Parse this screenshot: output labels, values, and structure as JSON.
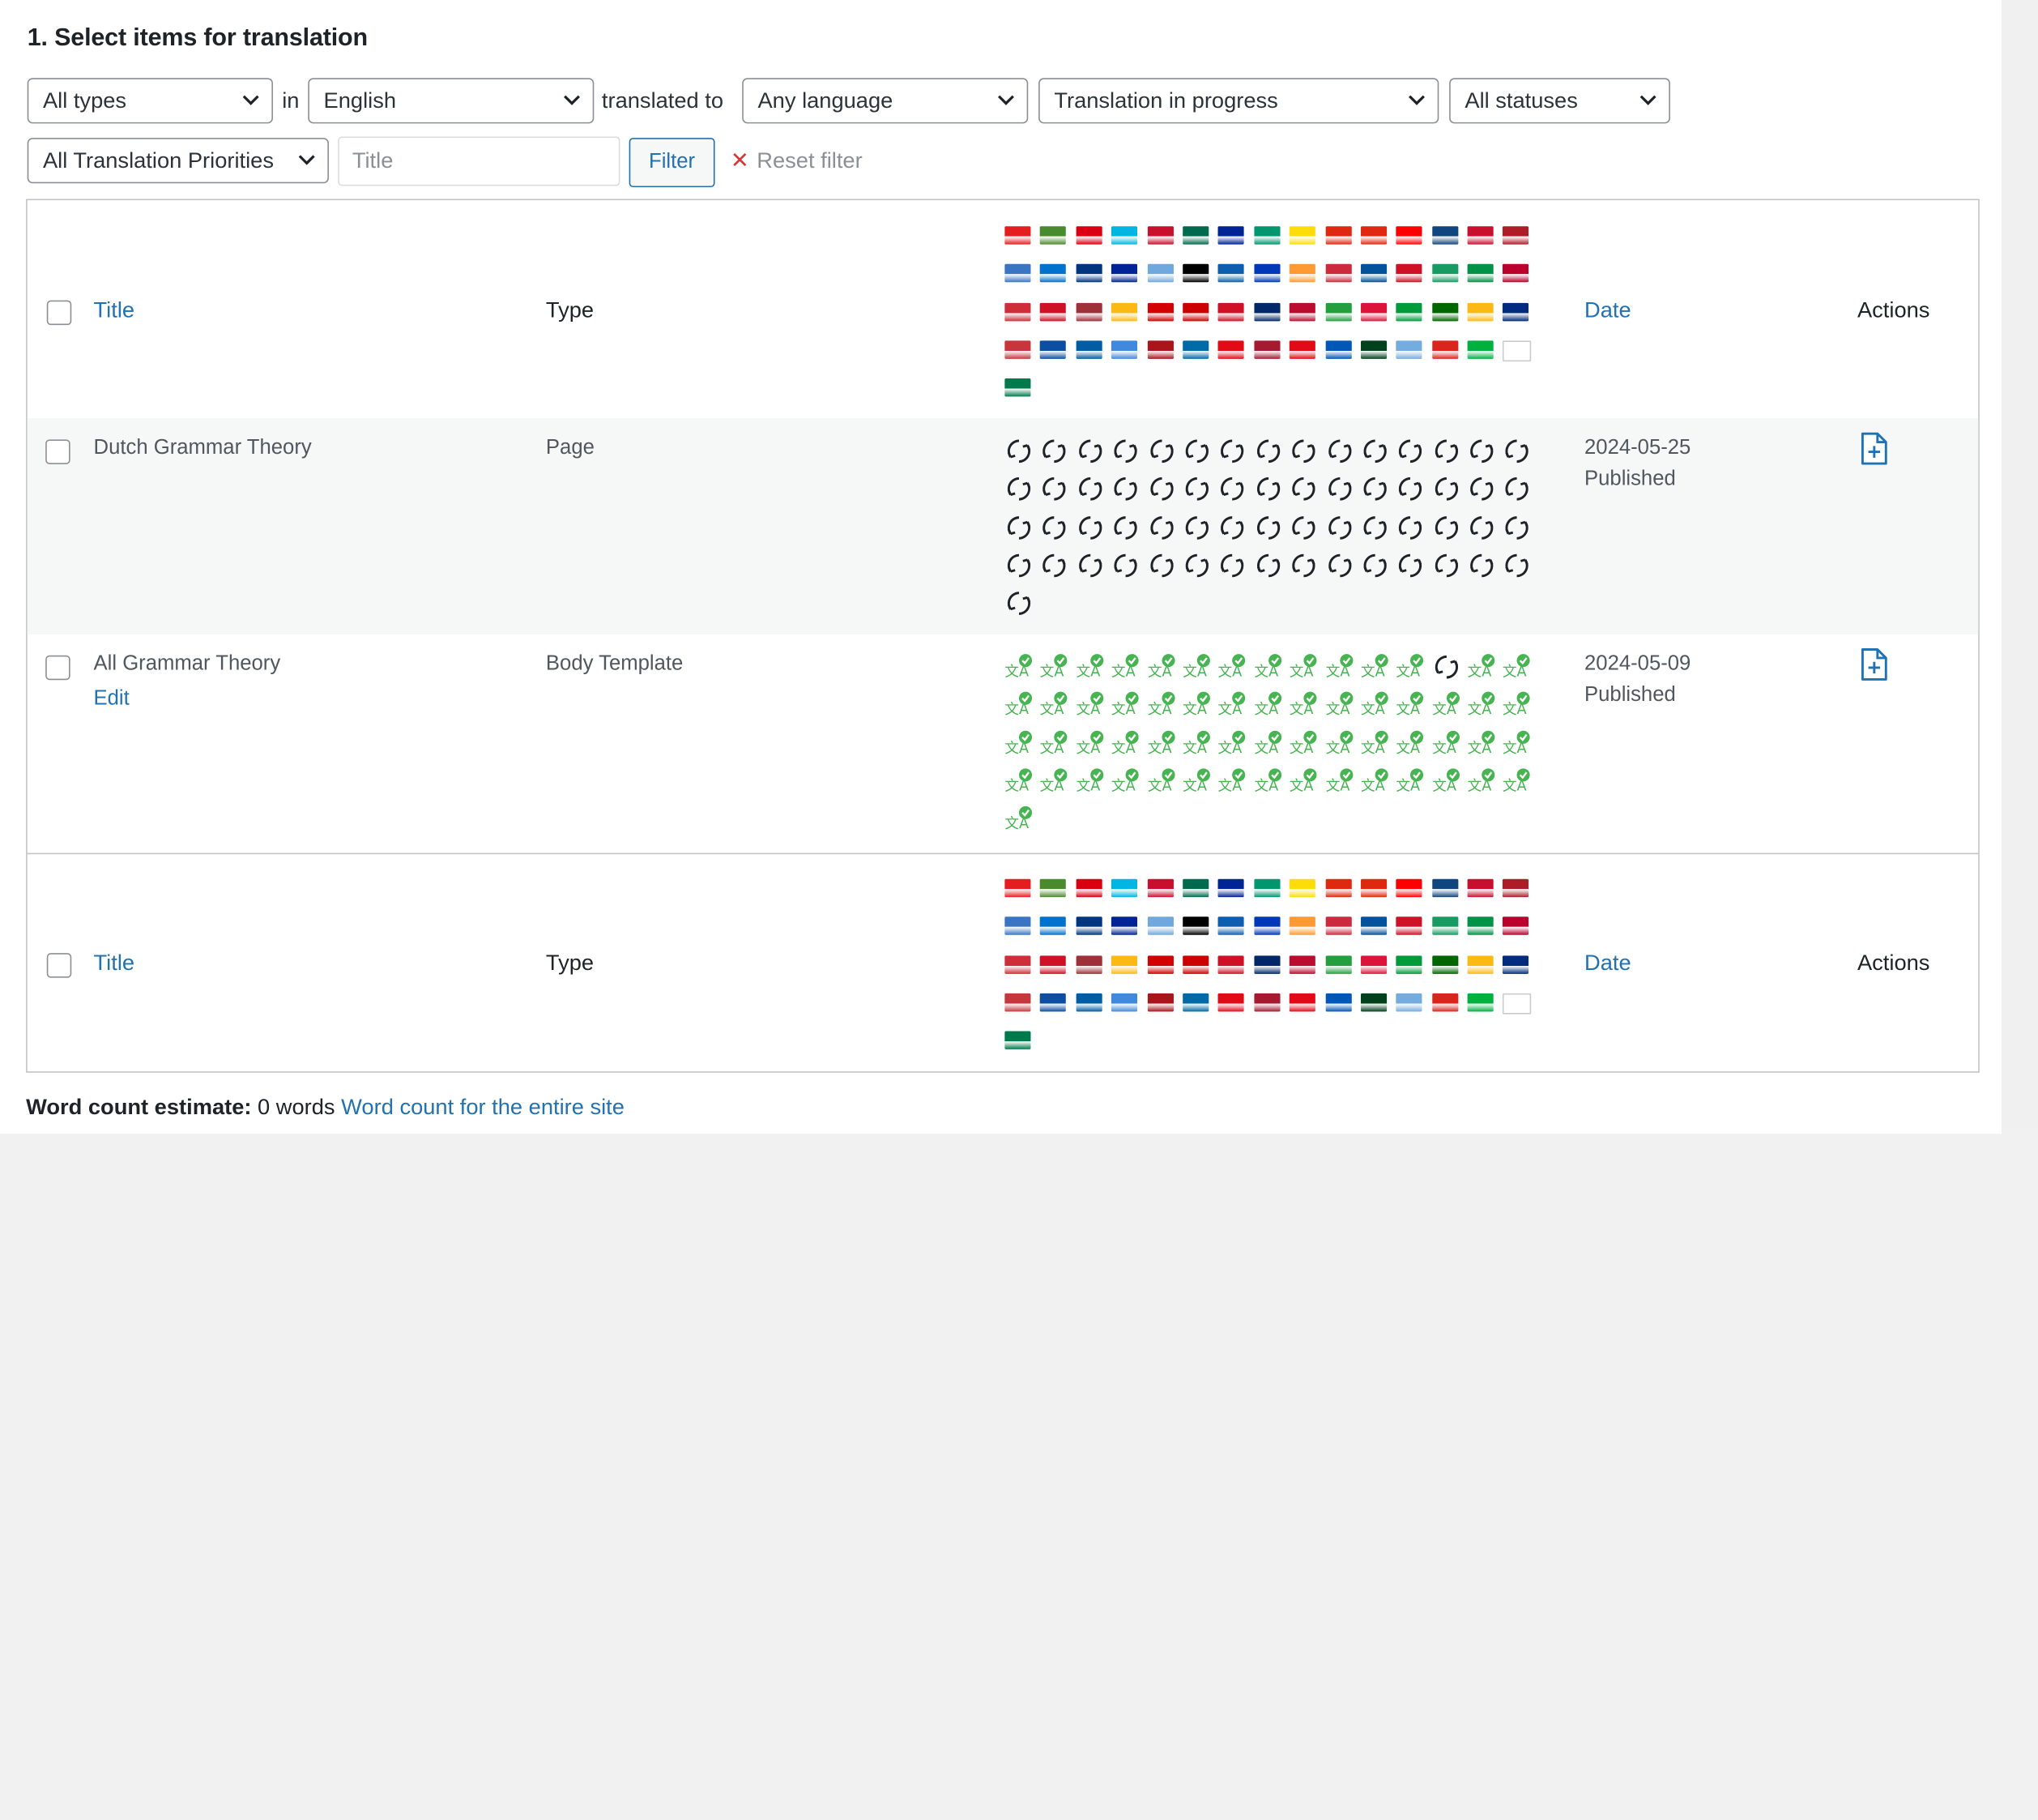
{
  "section_title": "1. Select items for translation",
  "filters": {
    "type_select": "All types",
    "in_label": "in",
    "language_select": "English",
    "translated_to_label": "translated to",
    "target_language_select": "Any language",
    "translation_status_select": "Translation in progress",
    "post_status_select": "All statuses",
    "priority_select": "All Translation Priorities",
    "title_placeholder": "Title",
    "filter_button": "Filter",
    "reset_filter": "Reset filter"
  },
  "table": {
    "header": {
      "title": "Title",
      "type": "Type",
      "date": "Date",
      "actions": "Actions"
    },
    "rows": [
      {
        "title": "Dutch Grammar Theory",
        "edit_link": "",
        "type": "Page",
        "date": "2024-05-25",
        "status": "Published",
        "status_icons": "in-progress"
      },
      {
        "title": "All Grammar Theory",
        "edit_link": "Edit",
        "type": "Body Template",
        "date": "2024-05-09",
        "status": "Published",
        "status_icons": "translated"
      }
    ]
  },
  "flag_colors": [
    "#e41e20",
    "#4a8a2e",
    "#d90012",
    "#00b5e2",
    "#c8102e",
    "#006a4e",
    "#002395",
    "#00966e",
    "#fcdd09",
    "#de2910",
    "#de2910",
    "#ff0000",
    "#11457e",
    "#c8102e",
    "#ae1c28",
    "#3a75c4",
    "#0072ce",
    "#003580",
    "#002395",
    "#6fa8dc",
    "#000000",
    "#0d5eaf",
    "#0038b8",
    "#ff9933",
    "#cd2a3e",
    "#02529c",
    "#ce1126",
    "#169b62",
    "#009246",
    "#bc002d",
    "#cd2e3a",
    "#ce1126",
    "#9e3039",
    "#fdb913",
    "#d20000",
    "#cc0001",
    "#ce1126",
    "#002868",
    "#ba0c2f",
    "#239f40",
    "#dc143c",
    "#009c3b",
    "#006600",
    "#fdb913",
    "#002b7f",
    "#c6363c",
    "#0b4ea2",
    "#005da4",
    "#4189dd",
    "#aa151b",
    "#006aa7",
    "#e30a17",
    "#a51931",
    "#e30a17",
    "#0057b7",
    "#01411c",
    "#74acdf",
    "#da251d",
    "#00b140",
    "#ffffff",
    "#007a4d"
  ]
}
